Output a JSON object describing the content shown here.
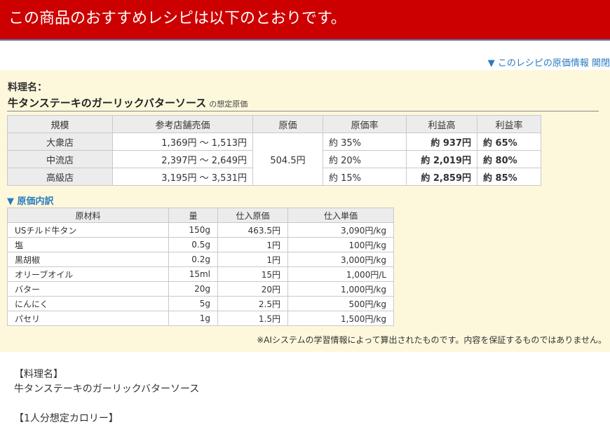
{
  "banner": {
    "title": "この商品のおすすめレシピは以下のとおりです。"
  },
  "cost_link": {
    "label": "▼ このレシピの原価情報 開閉"
  },
  "dish": {
    "label": "料理名：",
    "name": "牛タンステーキのガーリックバターソース",
    "suffix": "の想定原価"
  },
  "price_table": {
    "headers": [
      "規模",
      "参考店舗売価",
      "原価",
      "原価率",
      "利益高",
      "利益率"
    ],
    "cost": "504.5円",
    "rows": [
      {
        "scale": "大衆店",
        "price": "1,369円 ～ 1,513円",
        "rate": "約 35%",
        "profit": "約 937円",
        "margin": "約 65%"
      },
      {
        "scale": "中流店",
        "price": "2,397円 ～ 2,649円",
        "rate": "約 20%",
        "profit": "約 2,019円",
        "margin": "約 80%"
      },
      {
        "scale": "高級店",
        "price": "3,195円 ～ 3,531円",
        "rate": "約 15%",
        "profit": "約 2,859円",
        "margin": "約 85%"
      }
    ]
  },
  "breakdown": {
    "toggle": "▼ 原価内訳",
    "headers": [
      "原材料",
      "量",
      "仕入原価",
      "仕入単価"
    ],
    "rows": [
      {
        "name": "USチルド牛タン",
        "qty": "150g",
        "cost": "463.5円",
        "unit": "3,090円/kg"
      },
      {
        "name": "塩",
        "qty": "0.5g",
        "cost": "1円",
        "unit": "100円/kg"
      },
      {
        "name": "黒胡椒",
        "qty": "0.2g",
        "cost": "1円",
        "unit": "3,000円/kg"
      },
      {
        "name": "オリーブオイル",
        "qty": "15ml",
        "cost": "15円",
        "unit": "1,000円/L"
      },
      {
        "name": "バター",
        "qty": "20g",
        "cost": "20円",
        "unit": "1,000円/kg"
      },
      {
        "name": "にんにく",
        "qty": "5g",
        "cost": "2.5円",
        "unit": "500円/kg"
      },
      {
        "name": "パセリ",
        "qty": "1g",
        "cost": "1.5円",
        "unit": "1,500円/kg"
      }
    ]
  },
  "disclaimer": "※AIシステムの学習情報によって算出されたものです。内容を保証するものではありません。",
  "recipe_text": {
    "name_heading": "【料理名】",
    "name": "牛タンステーキのガーリックバターソース",
    "calorie_heading": "【1人分想定カロリー】"
  },
  "colors": {
    "banner_bg": "#cc0000",
    "panel_bg": "#fdf8dc",
    "link": "#2a7ac0"
  }
}
